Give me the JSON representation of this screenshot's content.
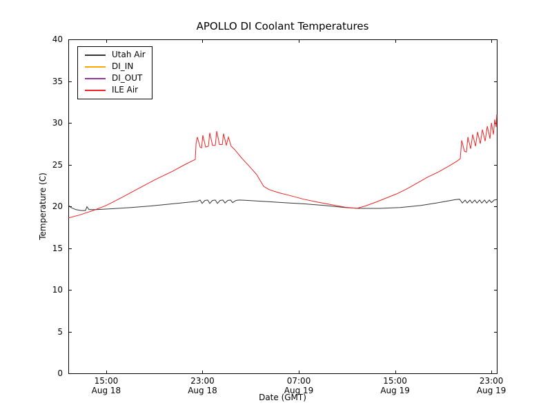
{
  "title": "APOLLO DI Coolant Temperatures",
  "axes": {
    "xlabel": "Date (GMT)",
    "ylabel": "Temperature (C)",
    "yticks": [
      "0",
      "5",
      "10",
      "15",
      "20",
      "25",
      "30",
      "35",
      "40"
    ],
    "xticks": [
      {
        "t": 15,
        "time": "15:00",
        "date": "Aug 18"
      },
      {
        "t": 23,
        "time": "23:00",
        "date": "Aug 18"
      },
      {
        "t": 31,
        "time": "07:00",
        "date": "Aug 19"
      },
      {
        "t": 39,
        "time": "15:00",
        "date": "Aug 19"
      },
      {
        "t": 47,
        "time": "23:00",
        "date": "Aug 19"
      }
    ]
  },
  "legend": {
    "entries": [
      {
        "label": "Utah Air",
        "color": "#333333"
      },
      {
        "label": "DI_IN",
        "color": "#ffa500"
      },
      {
        "label": "DI_OUT",
        "color": "#993399"
      },
      {
        "label": "ILE Air",
        "color": "#ee2222"
      }
    ]
  },
  "chart_data": {
    "type": "line",
    "title": "APOLLO DI Coolant Temperatures",
    "xlabel": "Date (GMT)",
    "ylabel": "Temperature (C)",
    "x_unit": "hours since Aug 18 00:00 GMT",
    "xlim": [
      11.85,
      47.45
    ],
    "ylim": [
      0,
      40
    ],
    "grid": false,
    "legend_position": "upper left",
    "xtick_values": [
      15,
      23,
      31,
      39,
      47
    ],
    "ytick_values": [
      0,
      5,
      10,
      15,
      20,
      25,
      30,
      35,
      40
    ],
    "series": [
      {
        "name": "Utah Air",
        "color": "#333333",
        "points": [
          [
            11.85,
            20.15
          ],
          [
            12.08,
            19.85
          ],
          [
            12.48,
            19.6
          ],
          [
            12.94,
            19.5
          ],
          [
            13.28,
            19.5
          ],
          [
            13.4,
            19.95
          ],
          [
            13.57,
            19.6
          ],
          [
            14.2,
            19.6
          ],
          [
            15.35,
            19.7
          ],
          [
            17.07,
            19.85
          ],
          [
            18.79,
            20.05
          ],
          [
            20.51,
            20.3
          ],
          [
            21.94,
            20.5
          ],
          [
            22.57,
            20.6
          ],
          [
            22.8,
            20.75
          ],
          [
            22.97,
            20.35
          ],
          [
            23.2,
            20.7
          ],
          [
            23.43,
            20.75
          ],
          [
            23.6,
            20.35
          ],
          [
            23.83,
            20.7
          ],
          [
            24.06,
            20.75
          ],
          [
            24.24,
            20.35
          ],
          [
            24.46,
            20.7
          ],
          [
            24.69,
            20.75
          ],
          [
            24.87,
            20.4
          ],
          [
            25.1,
            20.7
          ],
          [
            25.33,
            20.75
          ],
          [
            25.5,
            20.45
          ],
          [
            25.78,
            20.7
          ],
          [
            26.07,
            20.75
          ],
          [
            26.53,
            20.72
          ],
          [
            27.96,
            20.6
          ],
          [
            29.68,
            20.45
          ],
          [
            31.4,
            20.3
          ],
          [
            33.12,
            20.1
          ],
          [
            34.84,
            19.85
          ],
          [
            35.99,
            19.75
          ],
          [
            37.71,
            19.75
          ],
          [
            39.43,
            19.85
          ],
          [
            41.15,
            20.1
          ],
          [
            42.87,
            20.5
          ],
          [
            44.02,
            20.8
          ],
          [
            44.36,
            20.85
          ],
          [
            44.59,
            20.4
          ],
          [
            44.82,
            20.75
          ],
          [
            44.99,
            20.4
          ],
          [
            45.22,
            20.75
          ],
          [
            45.39,
            20.4
          ],
          [
            45.62,
            20.75
          ],
          [
            45.8,
            20.4
          ],
          [
            46.03,
            20.75
          ],
          [
            46.2,
            20.4
          ],
          [
            46.43,
            20.75
          ],
          [
            46.6,
            20.4
          ],
          [
            46.83,
            20.75
          ],
          [
            47.0,
            20.45
          ],
          [
            47.23,
            20.75
          ],
          [
            47.45,
            20.8
          ]
        ]
      },
      {
        "name": "DI_IN",
        "color": "#ffa500",
        "points": []
      },
      {
        "name": "DI_OUT",
        "color": "#993399",
        "points": []
      },
      {
        "name": "ILE Air",
        "color": "#ee2222",
        "points": [
          [
            11.85,
            18.6
          ],
          [
            12.77,
            18.95
          ],
          [
            13.91,
            19.5
          ],
          [
            15.0,
            20.1
          ],
          [
            16.21,
            21.0
          ],
          [
            17.64,
            22.1
          ],
          [
            19.07,
            23.2
          ],
          [
            20.51,
            24.2
          ],
          [
            21.54,
            25.0
          ],
          [
            22.23,
            25.5
          ],
          [
            22.4,
            25.6
          ],
          [
            22.46,
            27.5
          ],
          [
            22.57,
            28.3
          ],
          [
            22.8,
            27.1
          ],
          [
            22.92,
            27.0
          ],
          [
            23.03,
            28.5
          ],
          [
            23.26,
            27.1
          ],
          [
            23.49,
            27.2
          ],
          [
            23.6,
            28.8
          ],
          [
            23.83,
            27.3
          ],
          [
            24.06,
            27.3
          ],
          [
            24.18,
            29.0
          ],
          [
            24.41,
            27.4
          ],
          [
            24.64,
            27.4
          ],
          [
            24.75,
            28.7
          ],
          [
            24.98,
            27.3
          ],
          [
            25.15,
            28.3
          ],
          [
            25.38,
            27.2
          ],
          [
            25.67,
            26.8
          ],
          [
            26.24,
            25.8
          ],
          [
            26.82,
            24.9
          ],
          [
            27.5,
            23.8
          ],
          [
            28.08,
            22.4
          ],
          [
            28.53,
            22.0
          ],
          [
            29.39,
            21.6
          ],
          [
            30.25,
            21.3
          ],
          [
            31.4,
            20.85
          ],
          [
            32.55,
            20.5
          ],
          [
            33.69,
            20.2
          ],
          [
            34.84,
            19.9
          ],
          [
            35.81,
            19.75
          ],
          [
            36.56,
            20.05
          ],
          [
            37.42,
            20.5
          ],
          [
            38.28,
            21.0
          ],
          [
            39.14,
            21.5
          ],
          [
            40.0,
            22.1
          ],
          [
            40.86,
            22.8
          ],
          [
            41.72,
            23.5
          ],
          [
            42.58,
            24.1
          ],
          [
            43.44,
            24.8
          ],
          [
            44.13,
            25.4
          ],
          [
            44.41,
            25.7
          ],
          [
            44.53,
            27.9
          ],
          [
            44.76,
            26.6
          ],
          [
            44.93,
            26.5
          ],
          [
            45.05,
            28.3
          ],
          [
            45.28,
            26.9
          ],
          [
            45.45,
            28.6
          ],
          [
            45.68,
            27.2
          ],
          [
            45.85,
            28.9
          ],
          [
            46.08,
            27.5
          ],
          [
            46.25,
            29.2
          ],
          [
            46.48,
            27.8
          ],
          [
            46.66,
            29.6
          ],
          [
            46.88,
            28.1
          ],
          [
            47.0,
            30.0
          ],
          [
            47.17,
            28.6
          ],
          [
            47.28,
            30.4
          ],
          [
            47.4,
            29.5
          ],
          [
            47.45,
            31.0
          ]
        ]
      }
    ]
  }
}
